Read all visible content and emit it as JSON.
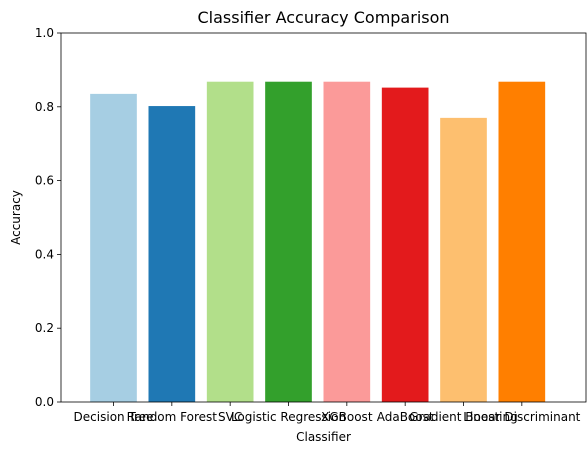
{
  "chart_data": {
    "type": "bar",
    "title": "Classifier Accuracy Comparison",
    "xlabel": "Classifier",
    "ylabel": "Accuracy",
    "ylim": [
      0,
      1.0
    ],
    "yticks": [
      "0.0",
      "0.2",
      "0.4",
      "0.6",
      "0.8",
      "1.0"
    ],
    "grid": false,
    "categories": [
      "Decision Tree",
      "Random Forest",
      "SVC",
      "Logistic Regression",
      "XGBoost",
      "AdaBoost",
      "Gradient Boosting",
      "Linear Discriminant"
    ],
    "values": [
      0.835,
      0.802,
      0.868,
      0.868,
      0.868,
      0.852,
      0.77,
      0.868
    ],
    "colors": [
      "#a6cee3",
      "#1f78b4",
      "#b2df8a",
      "#33a02c",
      "#fb9a99",
      "#e31a1c",
      "#fdbf6f",
      "#ff7f00"
    ]
  }
}
